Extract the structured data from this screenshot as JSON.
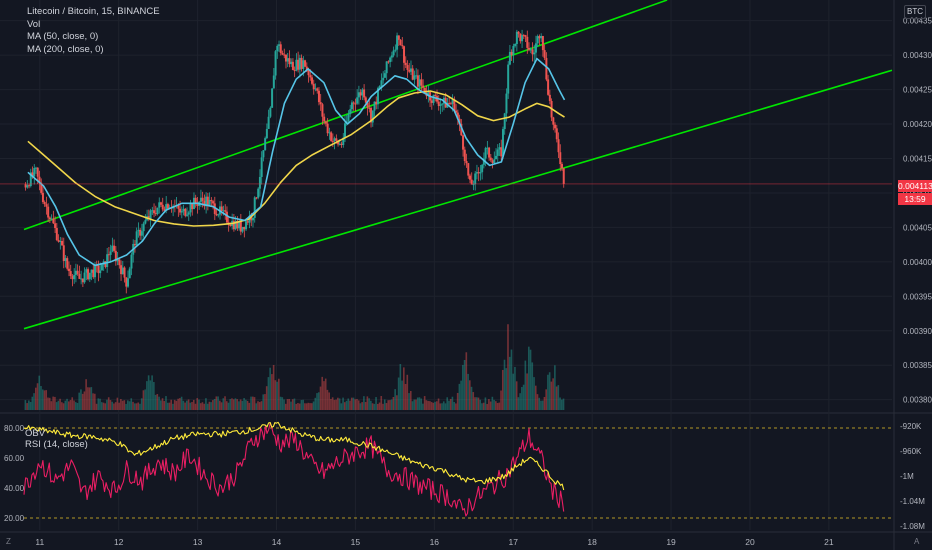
{
  "legend": {
    "symbol": "Litecoin / Bitcoin, 15, BINANCE",
    "volume": "Vol",
    "ma50": "MA (50, close, 0)",
    "ma200": "MA (200, close, 0)"
  },
  "rsi_legend": {
    "obv": "OBV",
    "rsi": "RSI (14, close)"
  },
  "unit_label": "BTC",
  "current_price": "0.004113",
  "countdown": "13:59",
  "corner_left": "Z",
  "corner_right": "A",
  "colors": {
    "background": "#131722",
    "up_candle": "#26a69a",
    "down_candle": "#ef5350",
    "channel": "#00e600",
    "ma50": "#56c5e8",
    "ma200": "#f0d64a",
    "rsi": "#e91e63",
    "obv": "#ffeb3b",
    "price_line": "#f23645",
    "ref_line": "#e6c229"
  },
  "chart_data": [
    {
      "type": "candlestick",
      "title": "Litecoin / Bitcoin, 15, BINANCE",
      "x_ticks": [
        "11",
        "12",
        "13",
        "14",
        "15",
        "16",
        "17",
        "18",
        "19",
        "20",
        "21"
      ],
      "y_ticks": [
        "0.004350",
        "0.004300",
        "0.004250",
        "0.004200",
        "0.004150",
        "0.004100",
        "0.004050",
        "0.004000",
        "0.003950",
        "0.003900",
        "0.003850",
        "0.003800"
      ],
      "ylim": [
        0.003785,
        0.00438
      ],
      "x_range": [
        10.8,
        21.8
      ],
      "price_path": [
        [
          10.8,
          0.00411
        ],
        [
          10.95,
          0.00413
        ],
        [
          11.05,
          0.00409
        ],
        [
          11.15,
          0.00406
        ],
        [
          11.25,
          0.00403
        ],
        [
          11.35,
          0.00399
        ],
        [
          11.5,
          0.003975
        ],
        [
          11.65,
          0.003985
        ],
        [
          11.8,
          0.00399
        ],
        [
          11.9,
          0.00402
        ],
        [
          12.0,
          0.004
        ],
        [
          12.1,
          0.00397
        ],
        [
          12.2,
          0.00403
        ],
        [
          12.35,
          0.00406
        ],
        [
          12.5,
          0.00408
        ],
        [
          12.65,
          0.004085
        ],
        [
          12.8,
          0.00407
        ],
        [
          12.95,
          0.004085
        ],
        [
          13.1,
          0.00409
        ],
        [
          13.25,
          0.004075
        ],
        [
          13.4,
          0.00406
        ],
        [
          13.55,
          0.00405
        ],
        [
          13.7,
          0.00407
        ],
        [
          13.78,
          0.00412
        ],
        [
          13.85,
          0.00417
        ],
        [
          13.92,
          0.004215
        ],
        [
          14.0,
          0.00432
        ],
        [
          14.08,
          0.0043
        ],
        [
          14.2,
          0.004285
        ],
        [
          14.35,
          0.00429
        ],
        [
          14.5,
          0.00425
        ],
        [
          14.6,
          0.004205
        ],
        [
          14.72,
          0.004175
        ],
        [
          14.82,
          0.00417
        ],
        [
          14.95,
          0.00423
        ],
        [
          15.1,
          0.00425
        ],
        [
          15.2,
          0.00421
        ],
        [
          15.3,
          0.00425
        ],
        [
          15.45,
          0.0043
        ],
        [
          15.55,
          0.00433
        ],
        [
          15.65,
          0.00428
        ],
        [
          15.8,
          0.00426
        ],
        [
          15.95,
          0.00424
        ],
        [
          16.1,
          0.00423
        ],
        [
          16.25,
          0.00423
        ],
        [
          16.35,
          0.00418
        ],
        [
          16.45,
          0.00411
        ],
        [
          16.55,
          0.004125
        ],
        [
          16.65,
          0.00416
        ],
        [
          16.75,
          0.00415
        ],
        [
          16.85,
          0.00416
        ],
        [
          16.95,
          0.0043
        ],
        [
          17.05,
          0.00433
        ],
        [
          17.15,
          0.00432
        ],
        [
          17.25,
          0.0043
        ],
        [
          17.35,
          0.00434
        ],
        [
          17.42,
          0.00427
        ],
        [
          17.5,
          0.0042
        ],
        [
          17.58,
          0.00416
        ],
        [
          17.65,
          0.004113
        ]
      ],
      "ma50": [
        [
          10.85,
          0.00413
        ],
        [
          11.05,
          0.00411
        ],
        [
          11.2,
          0.00408
        ],
        [
          11.35,
          0.00404
        ],
        [
          11.5,
          0.00401
        ],
        [
          11.7,
          0.003995
        ],
        [
          11.9,
          0.004
        ],
        [
          12.1,
          0.00401
        ],
        [
          12.3,
          0.00403
        ],
        [
          12.45,
          0.004055
        ],
        [
          12.6,
          0.004075
        ],
        [
          12.8,
          0.004085
        ],
        [
          13.0,
          0.004085
        ],
        [
          13.2,
          0.00408
        ],
        [
          13.4,
          0.004065
        ],
        [
          13.6,
          0.00406
        ],
        [
          13.8,
          0.00408
        ],
        [
          13.95,
          0.00416
        ],
        [
          14.1,
          0.00423
        ],
        [
          14.25,
          0.004265
        ],
        [
          14.4,
          0.00428
        ],
        [
          14.6,
          0.00426
        ],
        [
          14.75,
          0.00422
        ],
        [
          14.9,
          0.0042
        ],
        [
          15.05,
          0.004215
        ],
        [
          15.2,
          0.00424
        ],
        [
          15.35,
          0.004255
        ],
        [
          15.5,
          0.00427
        ],
        [
          15.65,
          0.004265
        ],
        [
          15.8,
          0.00425
        ],
        [
          15.95,
          0.00424
        ],
        [
          16.1,
          0.004235
        ],
        [
          16.25,
          0.00422
        ],
        [
          16.4,
          0.00418
        ],
        [
          16.55,
          0.004155
        ],
        [
          16.7,
          0.00414
        ],
        [
          16.85,
          0.004145
        ],
        [
          17.0,
          0.0042
        ],
        [
          17.15,
          0.00426
        ],
        [
          17.3,
          0.004295
        ],
        [
          17.45,
          0.00428
        ],
        [
          17.58,
          0.00425
        ],
        [
          17.65,
          0.004235
        ]
      ],
      "ma200": [
        [
          10.85,
          0.004175
        ],
        [
          11.0,
          0.00416
        ],
        [
          11.2,
          0.00414
        ],
        [
          11.45,
          0.004115
        ],
        [
          11.7,
          0.004095
        ],
        [
          11.95,
          0.00408
        ],
        [
          12.2,
          0.00407
        ],
        [
          12.45,
          0.00406
        ],
        [
          12.7,
          0.004055
        ],
        [
          12.95,
          0.004052
        ],
        [
          13.2,
          0.004053
        ],
        [
          13.45,
          0.004056
        ],
        [
          13.65,
          0.004062
        ],
        [
          13.85,
          0.004085
        ],
        [
          14.05,
          0.004115
        ],
        [
          14.25,
          0.00414
        ],
        [
          14.45,
          0.004155
        ],
        [
          14.7,
          0.00417
        ],
        [
          14.95,
          0.004185
        ],
        [
          15.2,
          0.004205
        ],
        [
          15.4,
          0.004225
        ],
        [
          15.55,
          0.004238
        ],
        [
          15.75,
          0.004245
        ],
        [
          15.95,
          0.004248
        ],
        [
          16.15,
          0.004242
        ],
        [
          16.35,
          0.004228
        ],
        [
          16.55,
          0.004212
        ],
        [
          16.75,
          0.004205
        ],
        [
          16.95,
          0.00421
        ],
        [
          17.15,
          0.004222
        ],
        [
          17.3,
          0.00423
        ],
        [
          17.45,
          0.004225
        ],
        [
          17.58,
          0.004215
        ],
        [
          17.65,
          0.00421
        ]
      ],
      "channel_upper": [
        [
          10.8,
          0.004047
        ],
        [
          18.95,
          0.00438
        ]
      ],
      "channel_lower": [
        [
          10.8,
          0.003903
        ],
        [
          21.8,
          0.004278
        ]
      ],
      "volume_peaks": [
        [
          11.0,
          0.3
        ],
        [
          11.6,
          0.25
        ],
        [
          12.4,
          0.3
        ],
        [
          13.95,
          0.6
        ],
        [
          14.6,
          0.3
        ],
        [
          15.6,
          0.45
        ],
        [
          16.4,
          0.5
        ],
        [
          16.95,
          1.0
        ],
        [
          17.2,
          0.7
        ],
        [
          17.5,
          0.5
        ]
      ]
    },
    {
      "type": "line",
      "title": "RSI (14, close)",
      "y_ticks_left": [
        "80.00",
        "60.00",
        "40.00",
        "20.00"
      ],
      "y_ticks_right": [
        "-920K",
        "-960K",
        "-1M",
        "-1.04M",
        "-1.08M"
      ],
      "ylim": [
        12,
        88
      ],
      "reference_lines": [
        80,
        20
      ],
      "series": [
        {
          "name": "RSI (14, close)",
          "points": [
            [
              10.8,
              40
            ],
            [
              11.0,
              58
            ],
            [
              11.2,
              45
            ],
            [
              11.4,
              55
            ],
            [
              11.55,
              36
            ],
            [
              11.75,
              48
            ],
            [
              11.95,
              38
            ],
            [
              12.1,
              52
            ],
            [
              12.3,
              45
            ],
            [
              12.5,
              58
            ],
            [
              12.7,
              50
            ],
            [
              12.9,
              62
            ],
            [
              13.1,
              48
            ],
            [
              13.3,
              40
            ],
            [
              13.5,
              50
            ],
            [
              13.7,
              72
            ],
            [
              13.9,
              80
            ],
            [
              14.05,
              70
            ],
            [
              14.25,
              72
            ],
            [
              14.45,
              55
            ],
            [
              14.6,
              50
            ],
            [
              14.8,
              58
            ],
            [
              15.0,
              64
            ],
            [
              15.2,
              68
            ],
            [
              15.4,
              52
            ],
            [
              15.6,
              48
            ],
            [
              15.8,
              42
            ],
            [
              16.0,
              38
            ],
            [
              16.2,
              34
            ],
            [
              16.35,
              24
            ],
            [
              16.5,
              32
            ],
            [
              16.7,
              40
            ],
            [
              16.9,
              48
            ],
            [
              17.05,
              60
            ],
            [
              17.2,
              74
            ],
            [
              17.35,
              60
            ],
            [
              17.5,
              38
            ],
            [
              17.65,
              30
            ]
          ]
        },
        {
          "name": "OBV",
          "points": [
            [
              10.8,
              80
            ],
            [
              11.1,
              78
            ],
            [
              11.4,
              75
            ],
            [
              11.7,
              74
            ],
            [
              12.0,
              70
            ],
            [
              12.2,
              62
            ],
            [
              12.4,
              66
            ],
            [
              12.7,
              73
            ],
            [
              13.0,
              76
            ],
            [
              13.3,
              76
            ],
            [
              13.6,
              78
            ],
            [
              13.8,
              80
            ],
            [
              14.0,
              83
            ],
            [
              14.3,
              76
            ],
            [
              14.6,
              72
            ],
            [
              14.9,
              72
            ],
            [
              15.2,
              68
            ],
            [
              15.5,
              62
            ],
            [
              15.8,
              56
            ],
            [
              16.1,
              52
            ],
            [
              16.35,
              46
            ],
            [
              16.6,
              44
            ],
            [
              16.9,
              48
            ],
            [
              17.05,
              55
            ],
            [
              17.2,
              60
            ],
            [
              17.4,
              52
            ],
            [
              17.5,
              46
            ],
            [
              17.65,
              40
            ]
          ]
        }
      ]
    }
  ]
}
